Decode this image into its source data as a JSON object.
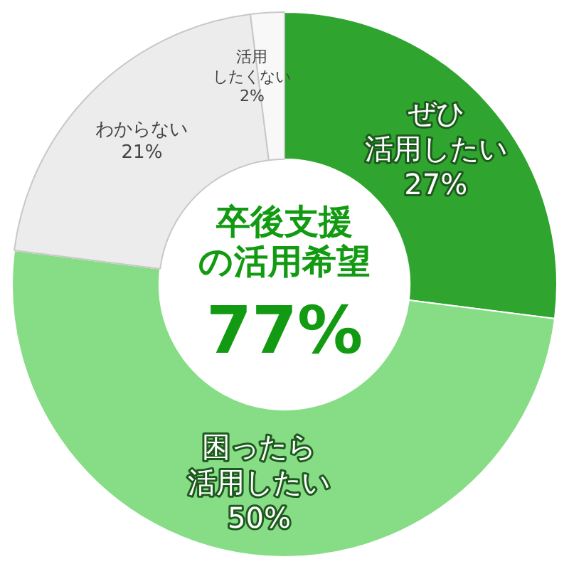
{
  "chart_data": {
    "type": "donut",
    "title": "卒後支援の活用希望",
    "annotations": [
      "77%"
    ],
    "categories": [
      "ぜひ活用したい",
      "困ったら活用したい",
      "わからない",
      "活用したくない"
    ],
    "values": [
      27,
      50,
      21,
      2
    ],
    "colors": [
      "#2fa52f",
      "#86dd86",
      "#ececec",
      "#f8f8f8"
    ],
    "value_labels": [
      "27%",
      "50%",
      "21%",
      "2%"
    ],
    "legend": false
  }
}
